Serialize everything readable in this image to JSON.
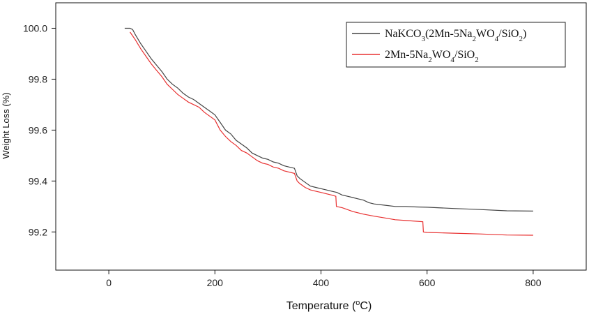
{
  "chart_data": {
    "type": "line",
    "title": "",
    "xlabel": "Temperature (",
    "xlabel_unit_sup": "o",
    "xlabel_unit": "C)",
    "ylabel": "Weight Loss (%)",
    "xlim": [
      -100,
      900
    ],
    "ylim": [
      99.05,
      100.1
    ],
    "xticks": [
      0,
      200,
      400,
      600,
      800
    ],
    "xtick_labels": [
      "0",
      "200",
      "400",
      "600",
      "800"
    ],
    "yticks": [
      99.2,
      99.4,
      99.6,
      99.8,
      100.0
    ],
    "ytick_labels": [
      "99.2",
      "99.4",
      "99.6",
      "99.8",
      "100.0"
    ],
    "grid": false,
    "legend_position": "top-right",
    "series": [
      {
        "name": "NaKCO3(2Mn-5Na2WO4/SiO2)",
        "legend_parts": [
          {
            "t": "NaKCO",
            "sub": false
          },
          {
            "t": "3",
            "sub": true
          },
          {
            "t": "(2Mn-5Na",
            "sub": false
          },
          {
            "t": "2",
            "sub": true
          },
          {
            "t": "WO",
            "sub": false
          },
          {
            "t": "4",
            "sub": true
          },
          {
            "t": "/SiO",
            "sub": false
          },
          {
            "t": "2",
            "sub": true
          },
          {
            "t": ")",
            "sub": false
          }
        ],
        "color": "#444444",
        "x": [
          30,
          40,
          45,
          50,
          60,
          70,
          80,
          90,
          100,
          110,
          120,
          130,
          140,
          150,
          160,
          170,
          180,
          190,
          200,
          210,
          220,
          230,
          240,
          250,
          260,
          270,
          280,
          290,
          300,
          310,
          320,
          330,
          340,
          350,
          355,
          360,
          370,
          380,
          390,
          400,
          410,
          420,
          430,
          440,
          450,
          460,
          470,
          480,
          490,
          500,
          520,
          540,
          560,
          580,
          600,
          620,
          650,
          700,
          750,
          800
        ],
        "y": [
          100.0,
          100.0,
          99.995,
          99.975,
          99.94,
          99.91,
          99.88,
          99.855,
          99.83,
          99.8,
          99.78,
          99.765,
          99.745,
          99.73,
          99.72,
          99.705,
          99.69,
          99.675,
          99.66,
          99.63,
          99.6,
          99.585,
          99.56,
          99.545,
          99.53,
          99.51,
          99.5,
          99.49,
          99.485,
          99.475,
          99.47,
          99.46,
          99.455,
          99.45,
          99.42,
          99.41,
          99.395,
          99.38,
          99.375,
          99.37,
          99.365,
          99.36,
          99.355,
          99.345,
          99.34,
          99.335,
          99.33,
          99.325,
          99.315,
          99.31,
          99.305,
          99.3,
          99.3,
          99.298,
          99.297,
          99.295,
          99.292,
          99.288,
          99.283,
          99.282
        ]
      },
      {
        "name": "2Mn-5Na2WO4/SiO2",
        "legend_parts": [
          {
            "t": "2Mn-5Na",
            "sub": false
          },
          {
            "t": "2",
            "sub": true
          },
          {
            "t": "WO",
            "sub": false
          },
          {
            "t": "4",
            "sub": true
          },
          {
            "t": "/SiO",
            "sub": false
          },
          {
            "t": "2",
            "sub": true
          }
        ],
        "color": "#e83030",
        "x": [
          40,
          45,
          50,
          60,
          70,
          80,
          90,
          100,
          110,
          120,
          130,
          140,
          150,
          160,
          170,
          180,
          190,
          200,
          210,
          220,
          230,
          240,
          250,
          260,
          270,
          280,
          290,
          300,
          310,
          320,
          330,
          340,
          350,
          355,
          360,
          370,
          380,
          390,
          400,
          410,
          420,
          428,
          429,
          440,
          460,
          480,
          500,
          520,
          540,
          560,
          580,
          592,
          593,
          600,
          650,
          700,
          750,
          800
        ],
        "y": [
          99.985,
          99.97,
          99.955,
          99.92,
          99.89,
          99.86,
          99.835,
          99.81,
          99.78,
          99.76,
          99.74,
          99.725,
          99.71,
          99.7,
          99.69,
          99.67,
          99.655,
          99.64,
          99.6,
          99.575,
          99.555,
          99.54,
          99.52,
          99.51,
          99.495,
          99.48,
          99.47,
          99.465,
          99.455,
          99.45,
          99.44,
          99.435,
          99.43,
          99.4,
          99.39,
          99.375,
          99.365,
          99.36,
          99.355,
          99.35,
          99.345,
          99.34,
          99.3,
          99.295,
          99.28,
          99.27,
          99.262,
          99.255,
          99.248,
          99.245,
          99.242,
          99.24,
          99.2,
          99.198,
          99.195,
          99.192,
          99.188,
          99.187
        ]
      }
    ]
  }
}
